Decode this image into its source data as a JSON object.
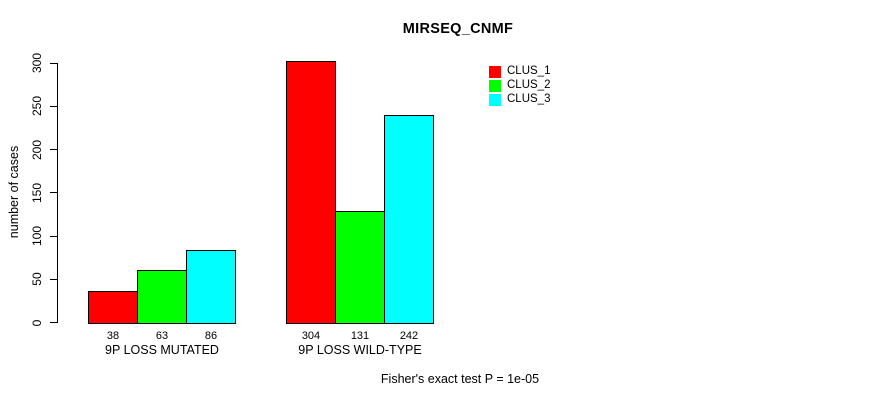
{
  "chart_data": {
    "type": "bar",
    "title": "MIRSEQ_CNMF",
    "ylabel": "number of cases",
    "xlabel": "",
    "ylim": [
      0,
      300
    ],
    "yticks": [
      0,
      50,
      100,
      150,
      200,
      250,
      300
    ],
    "categories": [
      "9P LOSS MUTATED",
      "9P LOSS WILD-TYPE"
    ],
    "series": [
      {
        "name": "CLUS_1",
        "color": "#ff0000",
        "values": [
          38,
          304
        ]
      },
      {
        "name": "CLUS_2",
        "color": "#00ff00",
        "values": [
          63,
          131
        ]
      },
      {
        "name": "CLUS_3",
        "color": "#00ffff",
        "values": [
          86,
          242
        ]
      }
    ],
    "bar_value_labels": [
      [
        38,
        63,
        86
      ],
      [
        304,
        131,
        242
      ]
    ],
    "legend": {
      "position": "top-right",
      "entries": [
        "CLUS_1",
        "CLUS_2",
        "CLUS_3"
      ]
    },
    "grid": false,
    "bar_border_color": "#000000",
    "background": "#ffffff",
    "annotation": "Fisher's exact test P = 1e-05"
  }
}
